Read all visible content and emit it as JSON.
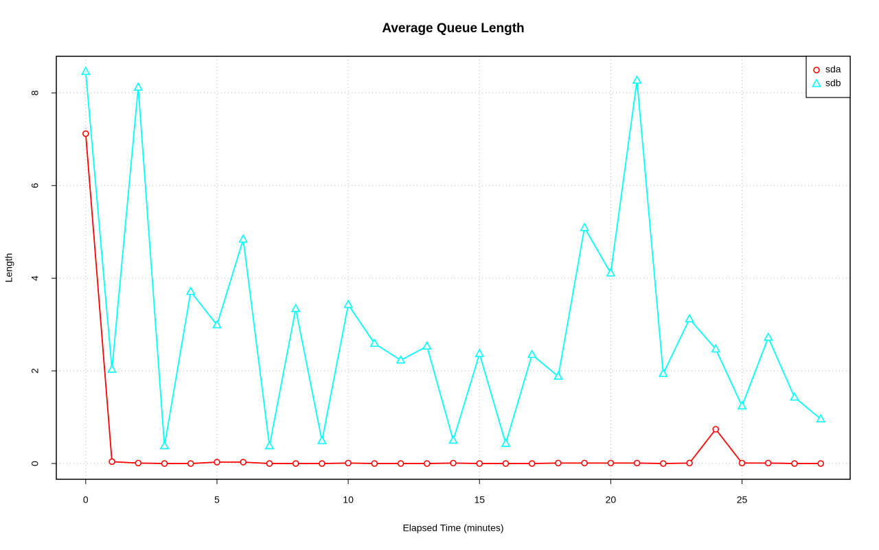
{
  "chart_data": {
    "type": "line",
    "title": "Average Queue Length",
    "x_label": "Elapsed Time (minutes)",
    "y_label": "Length",
    "x": [
      0,
      1,
      2,
      3,
      4,
      5,
      6,
      7,
      8,
      9,
      10,
      11,
      12,
      13,
      14,
      15,
      16,
      17,
      18,
      19,
      20,
      21,
      22,
      23,
      24,
      25,
      26,
      27,
      28
    ],
    "series": [
      {
        "name": "sda",
        "color": "#ff0000",
        "marker": "circle",
        "values": [
          7.12,
          0.04,
          0.01,
          0,
          0,
          0.03,
          0.03,
          0,
          0,
          0,
          0.01,
          0,
          0,
          0,
          0.01,
          0,
          0,
          0,
          0.01,
          0.01,
          0.01,
          0.01,
          0,
          0.01,
          0.74,
          0.01,
          0.01,
          0,
          0
        ]
      },
      {
        "name": "sdb",
        "color": "#00ffff",
        "marker": "triangle",
        "values": [
          8.46,
          2.03,
          8.12,
          0.38,
          3.71,
          2.99,
          4.84,
          0.38,
          3.34,
          0.49,
          3.43,
          2.59,
          2.23,
          2.53,
          0.5,
          2.37,
          0.43,
          2.35,
          1.88,
          5.09,
          4.11,
          8.27,
          1.94,
          3.12,
          2.47,
          1.24,
          2.72,
          1.43,
          0.96
        ]
      }
    ],
    "xlim": [
      -1.12,
      29.12
    ],
    "ylim": [
      -0.34,
      8.79
    ],
    "xticks": [
      0,
      5,
      10,
      15,
      20,
      25
    ],
    "yticks": [
      0,
      2,
      4,
      6,
      8
    ],
    "grid": true,
    "legend": "top-right"
  }
}
